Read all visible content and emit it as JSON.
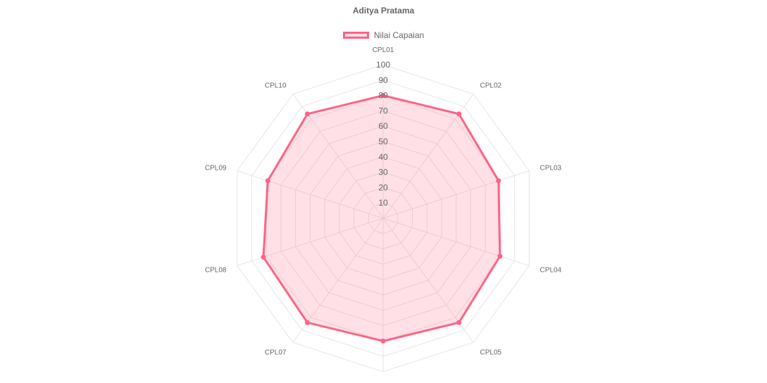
{
  "colors": {
    "series_line": "#ff6384",
    "series_fill": "rgba(255,99,132,0.2)",
    "grid": "#e6e6e6",
    "text": "#666666"
  },
  "chart_data": {
    "type": "radar",
    "title": "Aditya Pratama",
    "categories": [
      "CPL01",
      "CPL02",
      "CPL03",
      "CPL04",
      "CPL05",
      "CPL06",
      "CPL07",
      "CPL08",
      "CPL09",
      "CPL10"
    ],
    "series": [
      {
        "name": "Nilai Capaian",
        "values": [
          80,
          84,
          79,
          80,
          84,
          80,
          84,
          82,
          79,
          84
        ]
      }
    ],
    "rlim": [
      0,
      100
    ],
    "ticks": [
      10,
      20,
      30,
      40,
      50,
      60,
      70,
      80,
      90,
      100
    ],
    "legend_position": "top",
    "grid": true
  }
}
